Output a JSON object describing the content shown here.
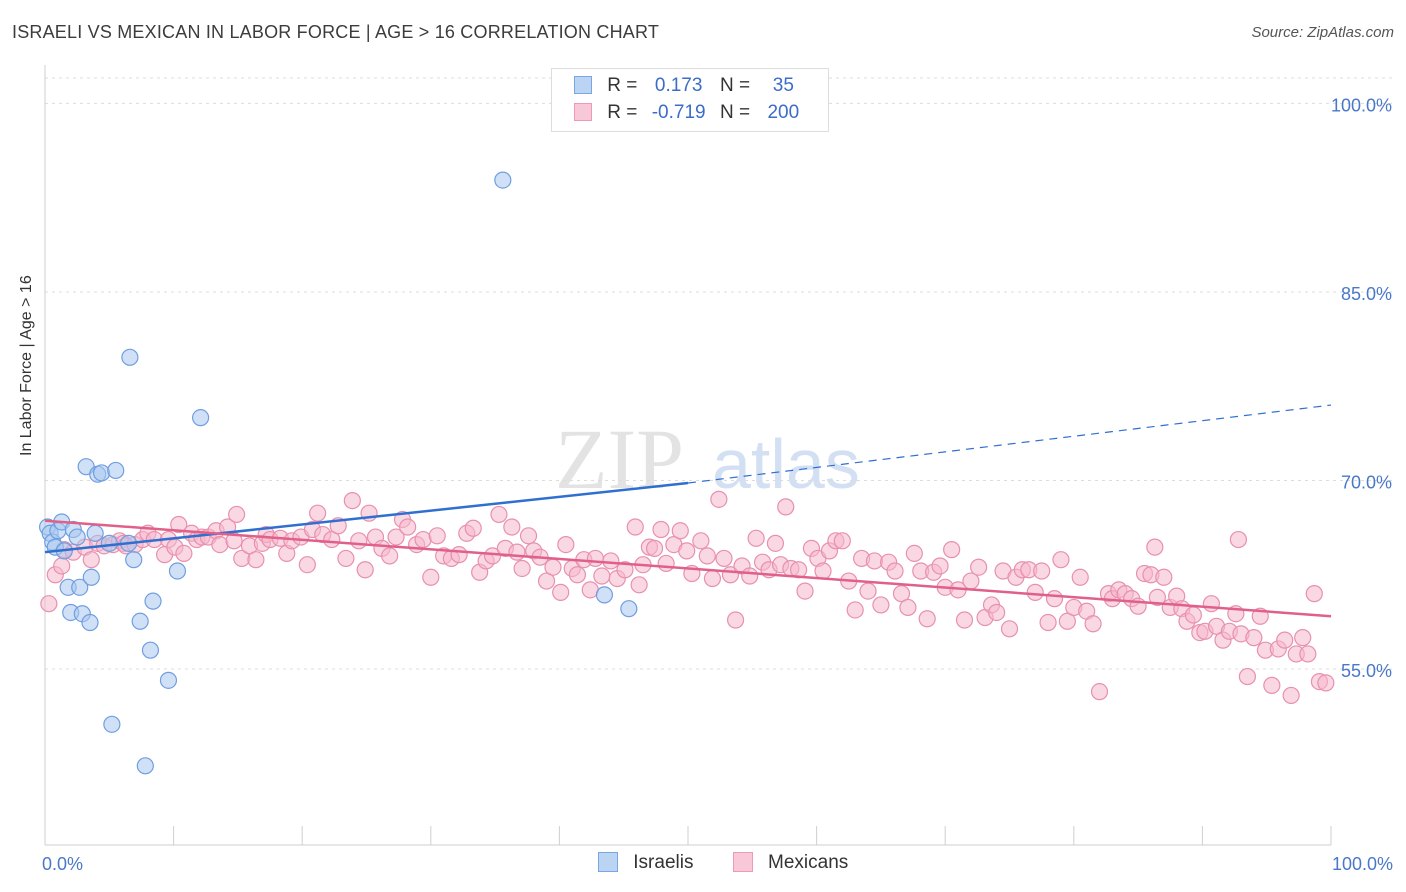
{
  "title": "ISRAELI VS MEXICAN IN LABOR FORCE | AGE > 16 CORRELATION CHART",
  "source": "Source: ZipAtlas.com",
  "watermark": {
    "zip": "ZIP",
    "atlas": "atlas"
  },
  "legend_top": {
    "rows": [
      {
        "r_label": "R =",
        "r_value": "0.173",
        "n_label": "N =",
        "n_value": "35"
      },
      {
        "r_label": "R =",
        "r_value": "-0.719",
        "n_label": "N =",
        "n_value": "200"
      }
    ]
  },
  "legend_bottom": {
    "items": [
      "Israelis",
      "Mexicans"
    ]
  },
  "colors": {
    "israelis_fill": "#aac8f0",
    "israelis_stroke": "#6f9ee0",
    "israelis_line": "#2f6fd0",
    "mexicans_fill": "#f5b8cc",
    "mexicans_stroke": "#e890ad",
    "mexicans_line": "#e0608a",
    "tick_label": "#4a78c8",
    "grid": "#dcdcdc"
  },
  "chart_data": {
    "type": "scatter",
    "title": "ISRAELI VS MEXICAN IN LABOR FORCE | AGE > 16 CORRELATION CHART",
    "xlabel": "",
    "ylabel": "In Labor Force | Age > 16",
    "xlim": [
      0,
      100
    ],
    "ylim": [
      41,
      102.5
    ],
    "x_tick_labels": [
      {
        "value": 0,
        "label": "0.0%"
      },
      {
        "value": 100,
        "label": "100.0%"
      }
    ],
    "y_tick_labels": [
      {
        "value": 100,
        "label": "100.0%"
      },
      {
        "value": 85,
        "label": "85.0%"
      },
      {
        "value": 70,
        "label": "70.0%"
      },
      {
        "value": 55,
        "label": "55.0%"
      }
    ],
    "grid": true,
    "legend_position": "top-center",
    "series": [
      {
        "name": "Israelis",
        "r": 0.173,
        "n": 35,
        "trend": {
          "x0": 0,
          "y0": 64.3,
          "x1": 50,
          "y1": 69.8,
          "dash_to_x": 100,
          "dash_to_y": 76.0
        },
        "points": [
          [
            0.2,
            66.3
          ],
          [
            0.4,
            65.8
          ],
          [
            0.6,
            65.1
          ],
          [
            0.8,
            64.7
          ],
          [
            1.0,
            66.0
          ],
          [
            1.3,
            66.7
          ],
          [
            1.5,
            64.4
          ],
          [
            1.8,
            61.5
          ],
          [
            2.0,
            59.5
          ],
          [
            2.2,
            66.1
          ],
          [
            2.5,
            65.5
          ],
          [
            2.7,
            61.5
          ],
          [
            2.9,
            59.4
          ],
          [
            3.2,
            71.1
          ],
          [
            3.5,
            58.7
          ],
          [
            3.6,
            62.3
          ],
          [
            3.9,
            65.8
          ],
          [
            4.1,
            70.5
          ],
          [
            4.4,
            70.6
          ],
          [
            5.0,
            65.0
          ],
          [
            5.2,
            50.6
          ],
          [
            5.5,
            70.8
          ],
          [
            6.5,
            65.0
          ],
          [
            6.6,
            79.8
          ],
          [
            6.9,
            63.7
          ],
          [
            7.4,
            58.8
          ],
          [
            7.8,
            47.3
          ],
          [
            8.2,
            56.5
          ],
          [
            8.4,
            60.4
          ],
          [
            9.6,
            54.1
          ],
          [
            10.3,
            62.8
          ],
          [
            12.1,
            75.0
          ],
          [
            35.6,
            93.9
          ],
          [
            43.5,
            60.9
          ],
          [
            45.4,
            59.8
          ]
        ]
      },
      {
        "name": "Mexicans",
        "r": -0.719,
        "n": 200,
        "trend": {
          "x0": 0,
          "y0": 66.8,
          "x1": 100,
          "y1": 59.2
        },
        "points": [
          [
            0.3,
            60.2
          ],
          [
            0.8,
            62.5
          ],
          [
            1.3,
            63.2
          ],
          [
            1.5,
            64.5
          ],
          [
            2.2,
            64.3
          ],
          [
            3.1,
            64.7
          ],
          [
            3.6,
            63.7
          ],
          [
            4.1,
            65.0
          ],
          [
            4.6,
            64.8
          ],
          [
            5.3,
            64.9
          ],
          [
            5.8,
            65.2
          ],
          [
            6.1,
            65.0
          ],
          [
            6.3,
            64.8
          ],
          [
            7.0,
            64.9
          ],
          [
            7.6,
            65.3
          ],
          [
            8.0,
            65.8
          ],
          [
            8.5,
            65.3
          ],
          [
            9.3,
            64.1
          ],
          [
            9.6,
            65.3
          ],
          [
            10.1,
            64.7
          ],
          [
            10.4,
            66.5
          ],
          [
            10.8,
            64.2
          ],
          [
            11.4,
            65.8
          ],
          [
            11.8,
            65.3
          ],
          [
            12.2,
            65.5
          ],
          [
            12.7,
            65.5
          ],
          [
            13.3,
            66.0
          ],
          [
            13.6,
            64.9
          ],
          [
            14.2,
            66.3
          ],
          [
            14.7,
            65.2
          ],
          [
            14.9,
            67.3
          ],
          [
            15.3,
            63.8
          ],
          [
            15.9,
            64.8
          ],
          [
            16.4,
            63.7
          ],
          [
            16.9,
            65.0
          ],
          [
            17.2,
            65.7
          ],
          [
            17.5,
            65.3
          ],
          [
            18.3,
            65.4
          ],
          [
            18.8,
            64.2
          ],
          [
            19.2,
            65.2
          ],
          [
            19.9,
            65.5
          ],
          [
            20.4,
            63.3
          ],
          [
            20.8,
            66.1
          ],
          [
            21.2,
            67.4
          ],
          [
            21.6,
            65.7
          ],
          [
            22.3,
            65.3
          ],
          [
            22.8,
            66.4
          ],
          [
            23.4,
            63.8
          ],
          [
            23.9,
            68.4
          ],
          [
            24.4,
            65.2
          ],
          [
            24.9,
            62.9
          ],
          [
            25.2,
            67.4
          ],
          [
            25.7,
            65.5
          ],
          [
            26.2,
            64.6
          ],
          [
            26.8,
            64.0
          ],
          [
            27.3,
            65.5
          ],
          [
            27.8,
            66.9
          ],
          [
            28.2,
            66.3
          ],
          [
            28.9,
            64.9
          ],
          [
            29.4,
            65.3
          ],
          [
            30.0,
            62.3
          ],
          [
            30.5,
            65.6
          ],
          [
            31.0,
            64.0
          ],
          [
            31.6,
            63.8
          ],
          [
            32.2,
            64.1
          ],
          [
            32.8,
            65.8
          ],
          [
            33.3,
            66.2
          ],
          [
            33.8,
            62.7
          ],
          [
            34.3,
            63.6
          ],
          [
            34.8,
            64.0
          ],
          [
            35.3,
            67.3
          ],
          [
            35.8,
            64.6
          ],
          [
            36.3,
            66.3
          ],
          [
            36.7,
            64.3
          ],
          [
            37.1,
            63.0
          ],
          [
            37.6,
            65.6
          ],
          [
            38.0,
            64.4
          ],
          [
            38.5,
            63.9
          ],
          [
            39.0,
            62.0
          ],
          [
            39.5,
            63.1
          ],
          [
            40.1,
            61.1
          ],
          [
            40.5,
            64.9
          ],
          [
            41.0,
            63.0
          ],
          [
            41.4,
            62.5
          ],
          [
            41.9,
            63.7
          ],
          [
            42.4,
            61.3
          ],
          [
            42.8,
            63.8
          ],
          [
            43.3,
            62.4
          ],
          [
            44.0,
            63.6
          ],
          [
            44.5,
            62.2
          ],
          [
            45.1,
            62.9
          ],
          [
            45.9,
            66.3
          ],
          [
            46.2,
            61.7
          ],
          [
            46.5,
            63.3
          ],
          [
            47.0,
            64.7
          ],
          [
            47.4,
            64.6
          ],
          [
            47.9,
            66.1
          ],
          [
            48.3,
            63.4
          ],
          [
            48.9,
            64.9
          ],
          [
            49.4,
            66.0
          ],
          [
            49.9,
            64.4
          ],
          [
            50.3,
            62.6
          ],
          [
            51.0,
            65.2
          ],
          [
            51.5,
            64.0
          ],
          [
            51.9,
            62.2
          ],
          [
            52.4,
            68.5
          ],
          [
            52.8,
            63.8
          ],
          [
            53.3,
            62.5
          ],
          [
            53.7,
            58.9
          ],
          [
            54.2,
            63.2
          ],
          [
            54.8,
            62.4
          ],
          [
            55.3,
            65.4
          ],
          [
            55.8,
            63.5
          ],
          [
            56.3,
            62.9
          ],
          [
            56.8,
            65.0
          ],
          [
            57.2,
            63.3
          ],
          [
            57.6,
            67.9
          ],
          [
            58.0,
            63.0
          ],
          [
            58.6,
            62.9
          ],
          [
            59.1,
            61.2
          ],
          [
            59.6,
            64.6
          ],
          [
            60.1,
            63.8
          ],
          [
            60.5,
            62.8
          ],
          [
            61.0,
            64.4
          ],
          [
            61.5,
            65.2
          ],
          [
            62.0,
            65.2
          ],
          [
            62.5,
            62.0
          ],
          [
            63.0,
            59.7
          ],
          [
            63.5,
            63.8
          ],
          [
            64.0,
            61.2
          ],
          [
            64.5,
            63.6
          ],
          [
            65.0,
            60.1
          ],
          [
            65.6,
            63.5
          ],
          [
            66.1,
            62.8
          ],
          [
            66.6,
            61.0
          ],
          [
            67.1,
            59.9
          ],
          [
            67.6,
            64.2
          ],
          [
            68.1,
            62.8
          ],
          [
            68.6,
            59.0
          ],
          [
            69.1,
            62.7
          ],
          [
            69.6,
            63.2
          ],
          [
            70.0,
            61.5
          ],
          [
            70.5,
            64.5
          ],
          [
            71.0,
            61.3
          ],
          [
            71.5,
            58.9
          ],
          [
            72.0,
            62.0
          ],
          [
            72.6,
            63.1
          ],
          [
            73.1,
            59.1
          ],
          [
            73.6,
            60.1
          ],
          [
            74.0,
            59.5
          ],
          [
            74.5,
            62.8
          ],
          [
            75.0,
            58.2
          ],
          [
            75.5,
            62.3
          ],
          [
            76.0,
            62.9
          ],
          [
            76.5,
            62.9
          ],
          [
            77.0,
            61.1
          ],
          [
            77.5,
            62.8
          ],
          [
            78.0,
            58.7
          ],
          [
            78.5,
            60.6
          ],
          [
            79.0,
            63.7
          ],
          [
            79.5,
            58.8
          ],
          [
            80.0,
            59.9
          ],
          [
            80.5,
            62.3
          ],
          [
            81.0,
            59.6
          ],
          [
            81.5,
            58.6
          ],
          [
            82.0,
            53.2
          ],
          [
            82.7,
            61.0
          ],
          [
            83.0,
            60.6
          ],
          [
            83.5,
            61.3
          ],
          [
            84.0,
            61.0
          ],
          [
            84.5,
            60.6
          ],
          [
            85.0,
            60.0
          ],
          [
            85.5,
            62.6
          ],
          [
            86.0,
            62.5
          ],
          [
            86.5,
            60.7
          ],
          [
            87.0,
            62.3
          ],
          [
            87.5,
            59.9
          ],
          [
            88.0,
            60.8
          ],
          [
            88.4,
            59.8
          ],
          [
            88.8,
            58.8
          ],
          [
            89.3,
            59.3
          ],
          [
            89.8,
            57.9
          ],
          [
            90.2,
            58.0
          ],
          [
            90.7,
            60.2
          ],
          [
            91.1,
            58.4
          ],
          [
            91.6,
            57.3
          ],
          [
            92.1,
            58.0
          ],
          [
            92.6,
            59.4
          ],
          [
            93.0,
            57.8
          ],
          [
            93.5,
            54.4
          ],
          [
            94.0,
            57.5
          ],
          [
            94.5,
            59.2
          ],
          [
            94.9,
            56.5
          ],
          [
            95.4,
            53.7
          ],
          [
            95.9,
            56.6
          ],
          [
            96.4,
            57.3
          ],
          [
            96.9,
            52.9
          ],
          [
            97.3,
            56.2
          ],
          [
            97.8,
            57.5
          ],
          [
            98.2,
            56.2
          ],
          [
            98.7,
            61.0
          ],
          [
            99.1,
            54.0
          ],
          [
            99.6,
            53.9
          ],
          [
            92.8,
            65.3
          ],
          [
            86.3,
            64.7
          ]
        ]
      }
    ]
  }
}
